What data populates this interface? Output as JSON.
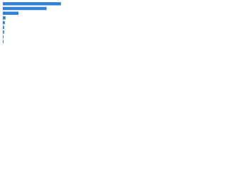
{
  "chart_data": {
    "type": "bar",
    "orientation": "horizontal",
    "categories": [
      null,
      null,
      null,
      null,
      null,
      null,
      null,
      null,
      null
    ],
    "values": [
      89,
      67,
      24,
      4,
      3,
      2,
      2,
      1,
      1
    ],
    "color": "#2f7ed8",
    "xlim": [
      0,
      100
    ]
  }
}
